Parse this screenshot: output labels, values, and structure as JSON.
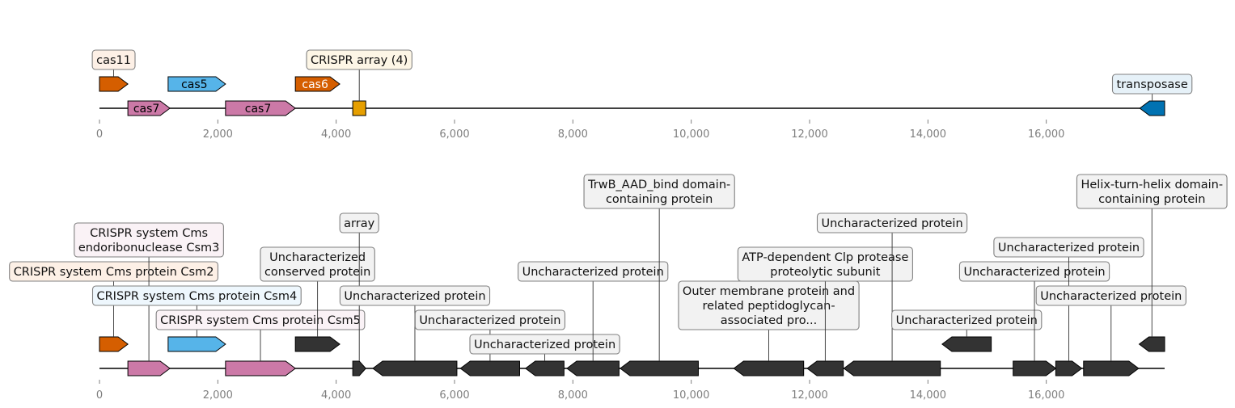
{
  "axis": {
    "xlim": [
      0,
      18000
    ],
    "ticks": [
      0,
      2000,
      4000,
      6000,
      8000,
      10000,
      12000,
      14000,
      16000
    ],
    "tick_labels": [
      "0",
      "2,000",
      "4,000",
      "6,000",
      "8,000",
      "10,000",
      "12,000",
      "14,000",
      "16,000"
    ]
  },
  "colors": {
    "orange": "#D55E00",
    "pink": "#CC79A7",
    "skyblue": "#56B4E9",
    "gold": "#E69F00",
    "blue": "#0072B2",
    "dark": "#333333",
    "spine": "#000000"
  },
  "tracks": [
    {
      "name": "top",
      "features": [
        {
          "start": 0,
          "end": 480,
          "strand": 1,
          "level": 1,
          "color": "orange",
          "label": "cas11",
          "callout_row": 2,
          "callout_bg": "#fdf0e6"
        },
        {
          "start": 480,
          "end": 1190,
          "strand": 1,
          "level": 0,
          "color": "pink",
          "inline": "cas7",
          "inline_color": "#000000"
        },
        {
          "start": 1160,
          "end": 2130,
          "strand": 1,
          "level": 1,
          "color": "skyblue",
          "inline": "cas5",
          "inline_color": "#000000"
        },
        {
          "start": 2130,
          "end": 3310,
          "strand": 1,
          "level": 0,
          "color": "pink",
          "inline": "cas7",
          "inline_color": "#000000"
        },
        {
          "start": 3310,
          "end": 4060,
          "strand": 1,
          "level": 1,
          "color": "orange",
          "inline": "cas6",
          "inline_color": "#ffffff"
        },
        {
          "start": 4280,
          "end": 4500,
          "strand": 0,
          "level": 0,
          "color": "gold",
          "label": "CRISPR array (4)",
          "callout_row": 2,
          "callout_bg": "#fdf6e6"
        },
        {
          "start": 17580,
          "end": 18000,
          "strand": -1,
          "level": 0,
          "color": "blue",
          "label": "transposase",
          "callout_row": 1,
          "callout_bg": "#e6f1f8"
        }
      ]
    },
    {
      "name": "bottom",
      "features": [
        {
          "start": 0,
          "end": 480,
          "strand": 1,
          "level": 1,
          "color": "orange",
          "label": "CRISPR system Cms protein Csm2",
          "callout_row": 4,
          "callout_bg": "#fdf0e6"
        },
        {
          "start": 480,
          "end": 1190,
          "strand": 1,
          "level": 0,
          "color": "pink",
          "label": "CRISPR system Cms\nendoribonuclease Csm3",
          "callout_row": 5,
          "callout_bg": "#faf2f6"
        },
        {
          "start": 1160,
          "end": 2130,
          "strand": 1,
          "level": 1,
          "color": "skyblue",
          "label": "CRISPR system Cms protein Csm4",
          "callout_row": 3,
          "callout_bg": "#eef7fd"
        },
        {
          "start": 2130,
          "end": 3310,
          "strand": 1,
          "level": 0,
          "color": "pink",
          "label": "CRISPR system Cms protein Csm5",
          "callout_row": 2,
          "callout_bg": "#faf2f6"
        },
        {
          "start": 3310,
          "end": 4060,
          "strand": 1,
          "level": 1,
          "color": "dark",
          "label": "Uncharacterized\nconserved protein",
          "callout_row": 4,
          "callout_bg": "#f2f2f2"
        },
        {
          "start": 4280,
          "end": 4500,
          "strand": 1,
          "level": 0,
          "color": "dark",
          "label": "array",
          "callout_row": 6,
          "callout_bg": "#f2f2f2"
        },
        {
          "start": 4620,
          "end": 6040,
          "strand": -1,
          "level": 0,
          "color": "dark",
          "label": "Uncharacterized protein",
          "callout_row": 3,
          "callout_bg": "#f2f2f2"
        },
        {
          "start": 6100,
          "end": 7100,
          "strand": -1,
          "level": 0,
          "color": "dark",
          "label": "Uncharacterized protein",
          "callout_row": 2,
          "callout_bg": "#f2f2f2"
        },
        {
          "start": 7200,
          "end": 7850,
          "strand": -1,
          "level": 0,
          "color": "dark",
          "label": "Uncharacterized protein",
          "callout_row": 1,
          "callout_bg": "#f2f2f2"
        },
        {
          "start": 7900,
          "end": 8780,
          "strand": -1,
          "level": 0,
          "color": "dark",
          "label": "Uncharacterized protein",
          "callout_row": 4,
          "callout_bg": "#f2f2f2"
        },
        {
          "start": 8800,
          "end": 10120,
          "strand": -1,
          "level": 0,
          "color": "dark",
          "label": "TrwB_AAD_bind domain-\ncontaining protein",
          "callout_row": 7,
          "callout_bg": "#f2f2f2"
        },
        {
          "start": 10720,
          "end": 11900,
          "strand": -1,
          "level": 0,
          "color": "dark",
          "label": "Outer membrane protein and\nrelated peptidoglycan-\nassociated pro...",
          "callout_row": 2,
          "callout_bg": "#f2f2f2"
        },
        {
          "start": 11960,
          "end": 12570,
          "strand": -1,
          "level": 0,
          "color": "dark",
          "label": "ATP-dependent Clp protease\nproteolytic subunit",
          "callout_row": 4,
          "callout_bg": "#f2f2f2"
        },
        {
          "start": 12580,
          "end": 14210,
          "strand": -1,
          "level": 0,
          "color": "dark",
          "label": "Uncharacterized protein",
          "callout_row": 6,
          "callout_bg": "#f2f2f2"
        },
        {
          "start": 14240,
          "end": 15070,
          "strand": -1,
          "level": 1,
          "color": "dark",
          "label": "Uncharacterized protein",
          "callout_row": 2,
          "callout_bg": "#f2f2f2"
        },
        {
          "start": 15440,
          "end": 16160,
          "strand": 1,
          "level": 0,
          "color": "dark",
          "label": "Uncharacterized protein",
          "callout_row": 4,
          "callout_bg": "#f2f2f2"
        },
        {
          "start": 16160,
          "end": 16600,
          "strand": 1,
          "level": 0,
          "color": "dark",
          "label": "Uncharacterized protein",
          "callout_row": 5,
          "callout_bg": "#f2f2f2"
        },
        {
          "start": 16630,
          "end": 17560,
          "strand": 1,
          "level": 0,
          "color": "dark",
          "label": "Uncharacterized protein",
          "callout_row": 3,
          "callout_bg": "#f2f2f2"
        },
        {
          "start": 17570,
          "end": 18000,
          "strand": -1,
          "level": 1,
          "color": "dark",
          "label": "Helix-turn-helix domain-\ncontaining protein",
          "callout_row": 7,
          "callout_bg": "#f2f2f2"
        }
      ]
    }
  ]
}
